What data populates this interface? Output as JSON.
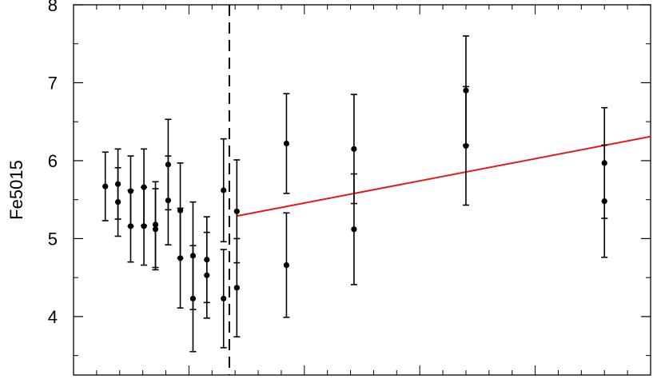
{
  "chart_data": {
    "type": "scatter",
    "ylabel": "Fe5015",
    "xlabel": "",
    "ylim": [
      3.25,
      8.0
    ],
    "yticks": [
      4,
      5,
      6,
      7,
      8
    ],
    "ytick_labels": [
      "4",
      "5",
      "6",
      "7",
      "8"
    ],
    "x_tick_labels_shown": false,
    "grid": false,
    "colors": {
      "points": "#000000",
      "error_bars": "#000000",
      "fit_line": "#e41a1c",
      "divider": "#000000"
    },
    "x_units": "arbitrary (no tick labels printed)",
    "xlim": [
      0,
      100
    ],
    "divider_x": 27.0,
    "points": [
      {
        "x": 5.5,
        "y": 5.67,
        "err_low": 0.44,
        "err_high": 0.44
      },
      {
        "x": 7.7,
        "y": 5.7,
        "err_low": 0.45,
        "err_high": 0.45
      },
      {
        "x": 7.7,
        "y": 5.47,
        "err_low": 0.44,
        "err_high": 0.44
      },
      {
        "x": 9.9,
        "y": 5.61,
        "err_low": 0.45,
        "err_high": 0.45
      },
      {
        "x": 9.9,
        "y": 5.16,
        "err_low": 0.46,
        "err_high": 0.46
      },
      {
        "x": 12.2,
        "y": 5.66,
        "err_low": 0.49,
        "err_high": 0.49
      },
      {
        "x": 12.2,
        "y": 5.16,
        "err_low": 0.5,
        "err_high": 0.5
      },
      {
        "x": 14.2,
        "y": 5.18,
        "err_low": 0.55,
        "err_high": 0.55
      },
      {
        "x": 14.2,
        "y": 5.12,
        "err_low": 0.52,
        "err_high": 0.52
      },
      {
        "x": 16.4,
        "y": 5.95,
        "err_low": 0.58,
        "err_high": 0.58
      },
      {
        "x": 16.4,
        "y": 5.49,
        "err_low": 0.57,
        "err_high": 0.57
      },
      {
        "x": 18.5,
        "y": 5.36,
        "err_low": 0.61,
        "err_high": 0.61
      },
      {
        "x": 18.5,
        "y": 4.75,
        "err_low": 0.64,
        "err_high": 0.64
      },
      {
        "x": 20.7,
        "y": 4.78,
        "err_low": 0.69,
        "err_high": 0.69
      },
      {
        "x": 20.7,
        "y": 4.23,
        "err_low": 0.68,
        "err_high": 0.68
      },
      {
        "x": 23.1,
        "y": 4.73,
        "err_low": 0.55,
        "err_high": 0.55
      },
      {
        "x": 23.1,
        "y": 4.53,
        "err_low": 0.55,
        "err_high": 0.55
      },
      {
        "x": 26.0,
        "y": 5.62,
        "err_low": 0.66,
        "err_high": 0.66
      },
      {
        "x": 26.0,
        "y": 4.23,
        "err_low": 0.63,
        "err_high": 0.63
      },
      {
        "x": 28.3,
        "y": 5.35,
        "err_low": 0.66,
        "err_high": 0.66
      },
      {
        "x": 28.3,
        "y": 4.37,
        "err_low": 0.63,
        "err_high": 0.63
      },
      {
        "x": 36.9,
        "y": 6.22,
        "err_low": 0.64,
        "err_high": 0.64
      },
      {
        "x": 36.9,
        "y": 4.66,
        "err_low": 0.67,
        "err_high": 0.67
      },
      {
        "x": 48.6,
        "y": 6.15,
        "err_low": 0.7,
        "err_high": 0.7
      },
      {
        "x": 48.6,
        "y": 5.12,
        "err_low": 0.71,
        "err_high": 0.71
      },
      {
        "x": 68.0,
        "y": 6.9,
        "err_low": 0.7,
        "err_high": 0.7
      },
      {
        "x": 68.0,
        "y": 6.19,
        "err_low": 0.76,
        "err_high": 0.76
      },
      {
        "x": 92.0,
        "y": 5.97,
        "err_low": 0.71,
        "err_high": 0.71
      },
      {
        "x": 92.0,
        "y": 5.48,
        "err_low": 0.72,
        "err_high": 0.72
      }
    ],
    "fit_line": {
      "x": [
        28.3,
        100
      ],
      "y": [
        5.29,
        6.31
      ]
    }
  }
}
